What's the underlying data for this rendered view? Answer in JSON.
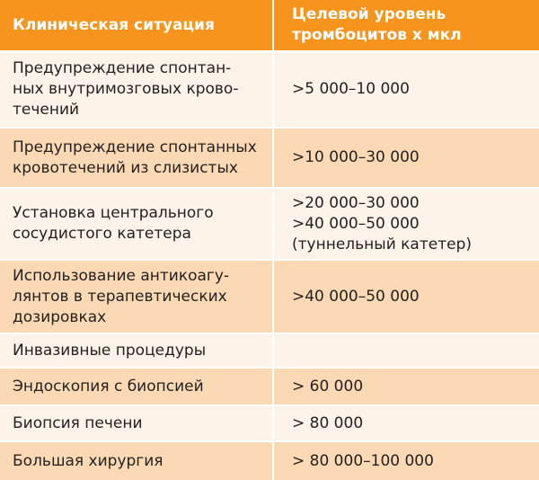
{
  "table": {
    "header": [
      [
        "Клиническая ситуация"
      ],
      [
        "Целевой уровень",
        "тромбоцитов х мкл"
      ]
    ],
    "rows": [
      [
        [
          "Предупреждение спонтан-",
          "ных внутримозговых крово-",
          "течений"
        ],
        [
          ">5 000–10 000"
        ]
      ],
      [
        [
          "Предупреждение спонтанных",
          "кровотечений из слизистых"
        ],
        [
          ">10 000–30 000"
        ]
      ],
      [
        [
          "Установка центрального",
          "сосудистого катетера"
        ],
        [
          ">20 000–30 000",
          ">40 000–50 000",
          "(туннельный катетер)"
        ]
      ],
      [
        [
          "Использование антикоагу-",
          "лянтов в терапевтических",
          "дозировках"
        ],
        [
          ">40 000–50 000"
        ]
      ],
      [
        [
          "Инвазивные процедуры"
        ]
      ],
      [
        [
          "Эндоскопия с биопсией"
        ],
        [
          "> 60 000"
        ]
      ],
      [
        [
          "Биопсия печени"
        ],
        [
          "> 80 000"
        ]
      ],
      [
        [
          "Большая хирургия"
        ],
        [
          "> 80 000–100 000"
        ]
      ]
    ]
  }
}
